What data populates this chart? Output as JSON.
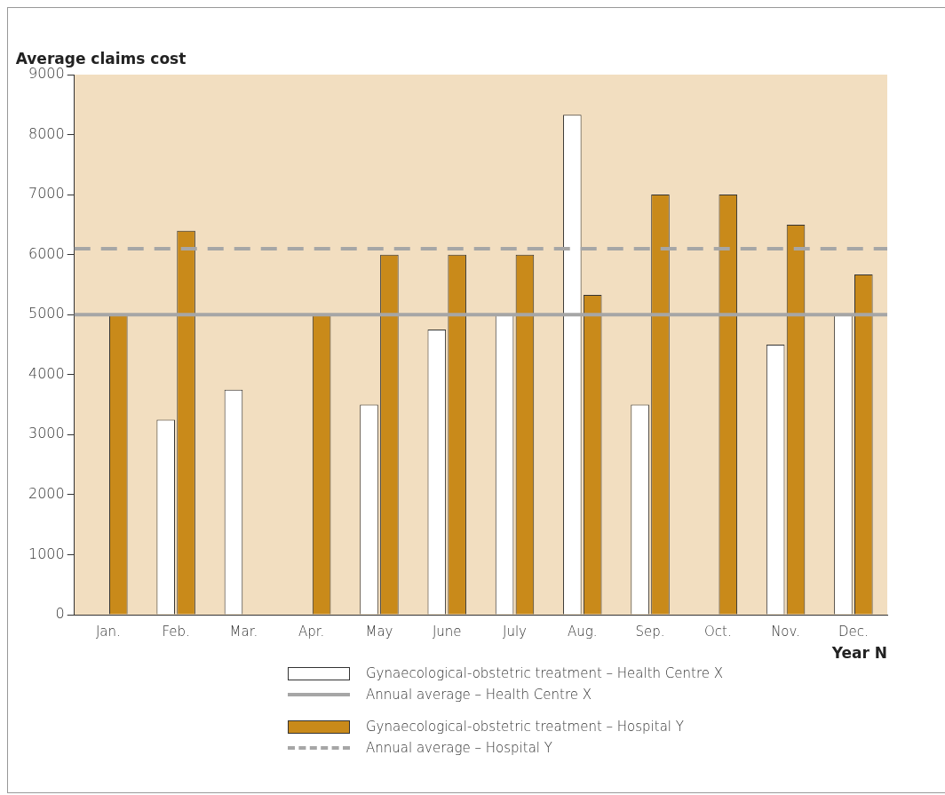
{
  "chart_data": {
    "type": "bar",
    "ylabel": "Average claims cost",
    "xlabel": "Year N",
    "categories": [
      "Jan.",
      "Feb.",
      "Mar.",
      "Apr.",
      "May",
      "June",
      "July",
      "Aug.",
      "Sep.",
      "Oct.",
      "Nov.",
      "Dec."
    ],
    "series": [
      {
        "name": "Gynaecological-obstetric treatment – Health Centre X",
        "color": "#ffffff",
        "values": [
          null,
          3250,
          3750,
          null,
          3500,
          4750,
          5000,
          8330,
          3500,
          null,
          4500,
          5000
        ]
      },
      {
        "name": "Gynaecological-obstetric treatment – Hospital Y",
        "color": "#c98a1a",
        "values": [
          5000,
          6400,
          null,
          5000,
          6000,
          6000,
          6000,
          5330,
          7000,
          7000,
          6500,
          5670
        ]
      }
    ],
    "ref_lines": [
      {
        "axis": "y",
        "value": 5000,
        "label": "Annual average – Health Centre X",
        "color": "#a6a6a6",
        "line_style": "solid"
      },
      {
        "axis": "y",
        "value": 6100,
        "label": "Annual average – Hospital Y",
        "color": "#a6a6a6",
        "line_style": "dashed"
      }
    ],
    "ylim": [
      0,
      9000
    ],
    "yticks": [
      0,
      1000,
      2000,
      3000,
      4000,
      5000,
      6000,
      7000,
      8000,
      9000
    ],
    "grid": false,
    "legend": "bottom"
  }
}
